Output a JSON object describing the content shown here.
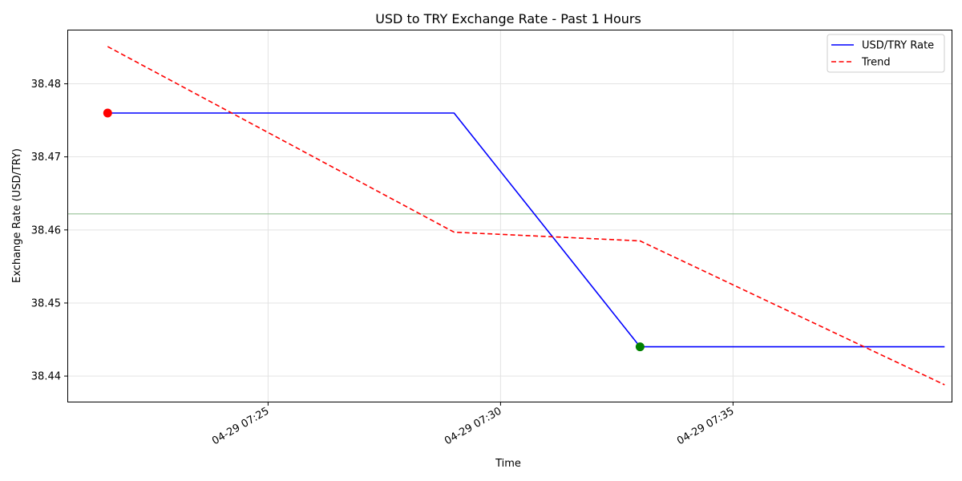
{
  "chart_data": {
    "type": "line",
    "title": "USD to TRY Exchange Rate - Past 1 Hours",
    "xlabel": "Time",
    "ylabel": "Exchange Rate (USD/TRY)",
    "x_unit": "minute of hour 07 on 04-29",
    "xlim": [
      20.7,
      39.7
    ],
    "ylim": [
      38.4365,
      38.4873
    ],
    "x_ticks": [
      {
        "x": 25,
        "label": "04-29 07:25"
      },
      {
        "x": 30,
        "label": "04-29 07:30"
      },
      {
        "x": 35,
        "label": "04-29 07:35"
      }
    ],
    "y_ticks": [
      {
        "y": 38.44,
        "label": "38.44"
      },
      {
        "y": 38.45,
        "label": "38.45"
      },
      {
        "y": 38.46,
        "label": "38.46"
      },
      {
        "y": 38.47,
        "label": "38.47"
      },
      {
        "y": 38.48,
        "label": "38.48"
      }
    ],
    "grid": true,
    "legend_position": "top-right",
    "series": [
      {
        "name": "USD/TRY Rate",
        "style": "solid",
        "color": "#0000ff",
        "x": [
          21.55,
          29.0,
          33.0,
          39.55
        ],
        "y": [
          38.476,
          38.476,
          38.444,
          38.444
        ]
      },
      {
        "name": "Trend",
        "style": "dashed",
        "color": "#ff0000",
        "x": [
          21.55,
          29.0,
          33.0,
          39.55
        ],
        "y": [
          38.4851,
          38.4597,
          38.4585,
          38.4388
        ]
      }
    ],
    "reference_line": {
      "y": 38.4622,
      "color": "#8fbc8f"
    },
    "markers": [
      {
        "x": 21.55,
        "y": 38.476,
        "color": "#ff0000"
      },
      {
        "x": 33.0,
        "y": 38.444,
        "color": "#008000"
      }
    ]
  }
}
